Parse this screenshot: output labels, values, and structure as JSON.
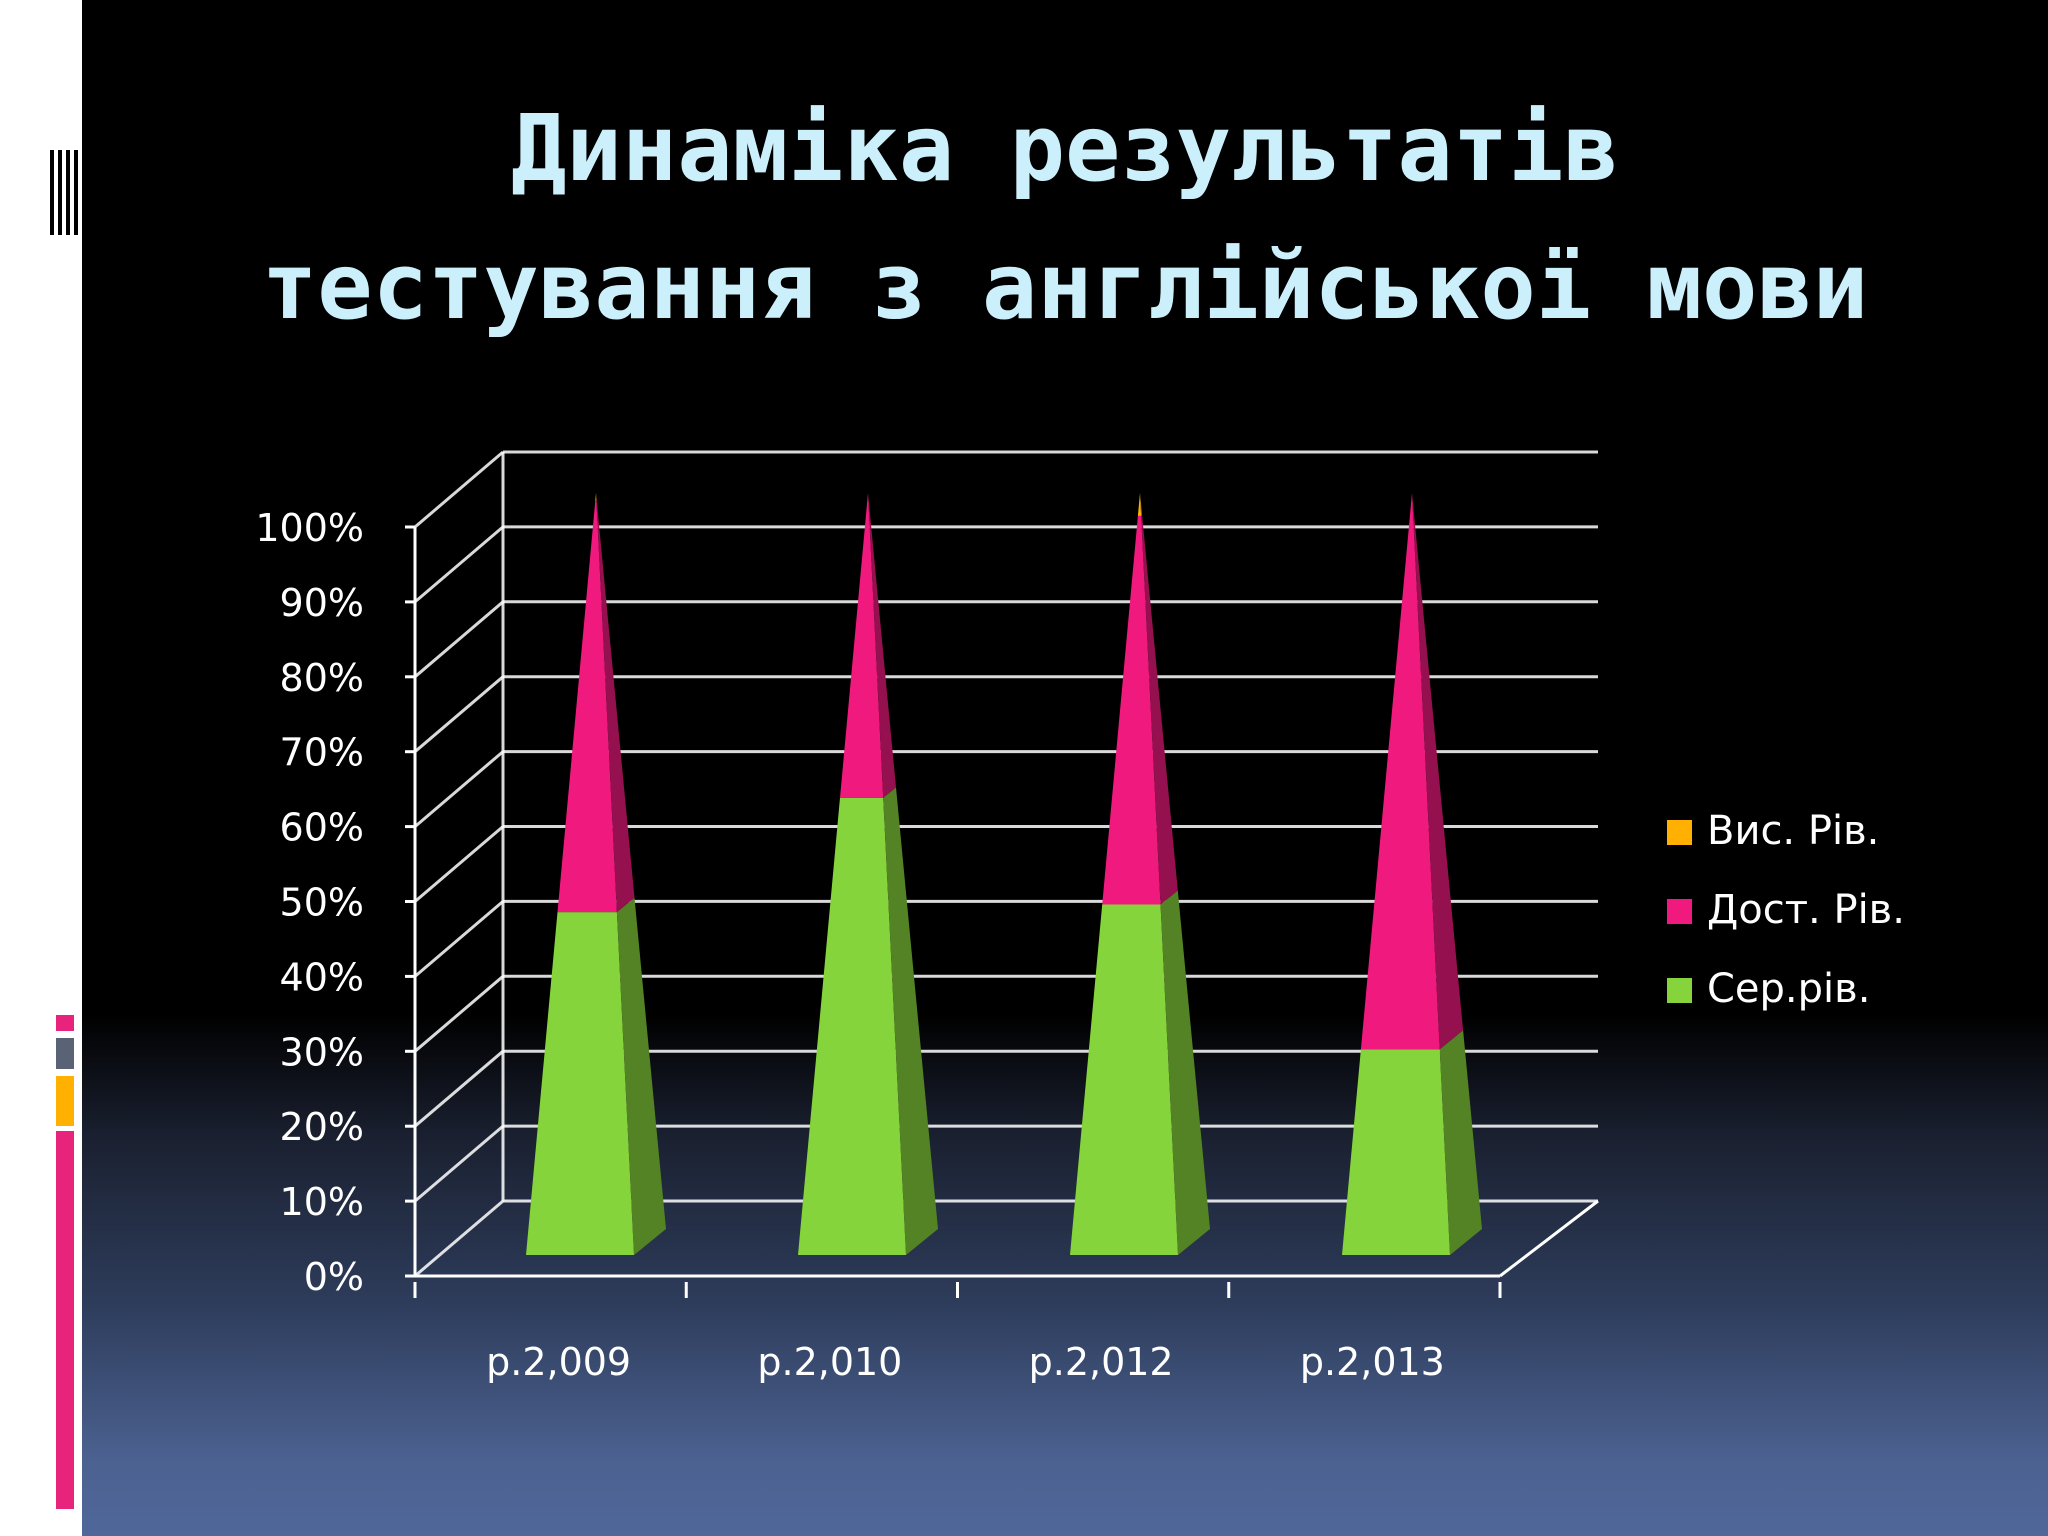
{
  "title": {
    "line1": "Динаміка результатів",
    "line2": "тестування з англійської мови"
  },
  "colors": {
    "background_top": "#000000",
    "background_bottom": "#50679a",
    "title": "#ccf0fb",
    "high_level": "#ffb000",
    "sufficient_level": "#f0197d",
    "average_level": "#86d43c",
    "grid": "#ffffff",
    "decor_stripe_pink": "#e8237c",
    "decor_stripe_gray": "#5a6275",
    "decor_stripe_orange": "#ffb000"
  },
  "chart_data": {
    "type": "bar",
    "style": "3d-stacked-100%-pyramid",
    "title": "Динаміка результатів тестування з англійської мови",
    "categories": [
      "р.2,009",
      "р.2,010",
      "р.2,012",
      "р.2,013"
    ],
    "series": [
      {
        "name": "Сер.рів.",
        "color": "#86d43c",
        "values": [
          45,
          60,
          46,
          27
        ]
      },
      {
        "name": "Дост. Рів.",
        "color": "#f0197d",
        "values": [
          54,
          40,
          51,
          73
        ]
      },
      {
        "name": "Вис. Рів.",
        "color": "#ffb000",
        "values": [
          1,
          0,
          3,
          0
        ]
      }
    ],
    "y_tick_labels": [
      "0%",
      "10%",
      "20%",
      "30%",
      "40%",
      "50%",
      "60%",
      "70%",
      "80%",
      "90%",
      "100%"
    ],
    "ylim": [
      0,
      100
    ],
    "xlabel": "",
    "ylabel": "",
    "grid": true,
    "legend_position": "right",
    "legend_order": [
      "Вис. Рів.",
      "Дост. Рів.",
      "Сер.рів."
    ]
  }
}
